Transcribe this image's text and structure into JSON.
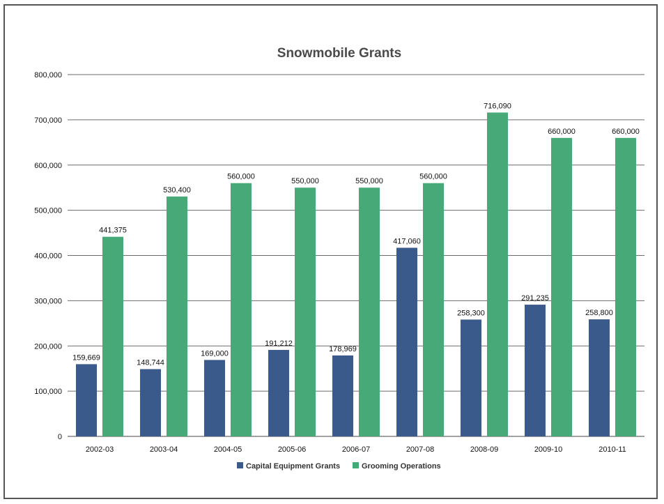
{
  "chart_data": {
    "type": "bar",
    "title": "Snowmobile Grants",
    "xlabel": "",
    "ylabel": "",
    "categories": [
      "2002-03",
      "2003-04",
      "2004-05",
      "2005-06",
      "2006-07",
      "2007-08",
      "2008-09",
      "2009-10",
      "2010-11"
    ],
    "series": [
      {
        "name": "Capital Equipment Grants",
        "color": "#3b5a8c",
        "values": [
          159669,
          148744,
          169000,
          191212,
          178969,
          417060,
          258300,
          291235,
          258800
        ],
        "value_labels": [
          "159,669",
          "148,744",
          "169,000",
          "191,212",
          "178,969",
          "417,060",
          "258,300",
          "291,235",
          "258,800"
        ]
      },
      {
        "name": "Grooming Operations",
        "color": "#48a978",
        "values": [
          441375,
          530400,
          560000,
          550000,
          550000,
          560000,
          716090,
          660000,
          660000
        ],
        "value_labels": [
          "441,375",
          "530,400",
          "560,000",
          "550,000",
          "550,000",
          "560,000",
          "716,090",
          "660,000",
          "660,000"
        ]
      }
    ],
    "ylim": [
      0,
      800000
    ],
    "yticks": [
      0,
      100000,
      200000,
      300000,
      400000,
      500000,
      600000,
      700000,
      800000
    ],
    "ytick_labels": [
      "0",
      "100,000",
      "200,000",
      "300,000",
      "400,000",
      "500,000",
      "600,000",
      "700,000",
      "800,000"
    ],
    "grid": true,
    "legend_position": "bottom"
  }
}
